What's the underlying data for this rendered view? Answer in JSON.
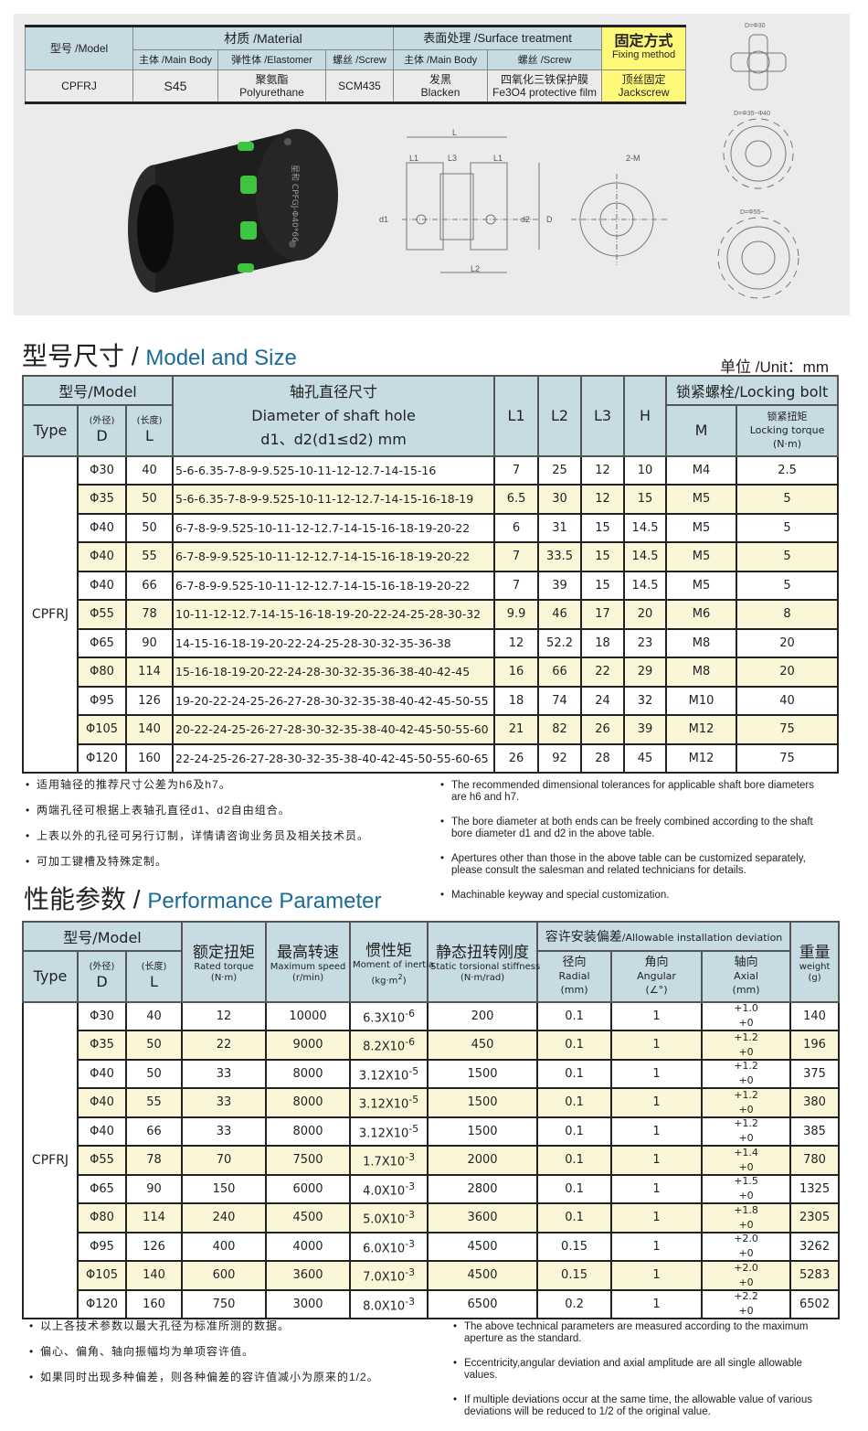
{
  "materials": {
    "model_label": "型号 /Model",
    "material": "材质 /Material",
    "surface": "表面处理 /Surface treatment",
    "fixing": "固定方式",
    "fixing_en": "Fixing method",
    "main_body": "主体 /Main Body",
    "elastomer": "弹性体 /Elastomer",
    "screw": "螺丝 /Screw",
    "surface_main": "主体 /Main Body",
    "surface_screw": "螺丝 /Screw",
    "model": "CPFRJ",
    "body_val": "S45",
    "elast_zh": "聚氨酯",
    "elast_en": "Polyurethane",
    "screw_val": "SCM435",
    "surf_body_zh": "发黑",
    "surf_body_en": "Blacken",
    "surf_screw_zh": "四氧化三铁保护膜",
    "surf_screw_en": "Fe3O4 protective film",
    "fix_zh": "顶丝固定",
    "fix_en": "Jackscrew",
    "accent": "#fff97a"
  },
  "product_image": {
    "engraving": "星和 CPFGJ-Φ40*66"
  },
  "drawing": {
    "L": "L",
    "L1": "L1",
    "L2": "L2",
    "L3": "L3",
    "d1": "d1",
    "d2": "d2",
    "D": "D",
    "M": "2-M",
    "d30": "D=Φ30",
    "d35": "D=Φ35~Φ40",
    "d55": "D=Φ55~"
  },
  "size": {
    "title_zh": "型号尺寸",
    "title_en": "Model and Size",
    "unit": "单位 /Unit：mm",
    "h_model": "型号/Model",
    "h_type": "Type",
    "h_d_zh": "(外径)",
    "h_d": "D",
    "h_l_zh": "(长度)",
    "h_l": "L",
    "h_shaft_zh": "轴孔直径尺寸",
    "h_shaft_en": "Diameter of shaft hole",
    "h_shaft_f": "d1、d2(d1≤d2) mm",
    "h_l1": "L1",
    "h_l2": "L2",
    "h_l3": "L3",
    "h_h": "H",
    "h_lock": "锁紧螺栓/Locking bolt",
    "h_m": "M",
    "h_tq_zh": "锁紧扭矩",
    "h_tq_en": "Locking torque",
    "h_tq_u": "(N·m)",
    "type": "CPFRJ",
    "rows": [
      [
        "Φ30",
        "40",
        "5-6-6.35-7-8-9-9.525-10-11-12-12.7-14-15-16",
        "7",
        "25",
        "12",
        "10",
        "M4",
        "2.5"
      ],
      [
        "Φ35",
        "50",
        "5-6-6.35-7-8-9-9.525-10-11-12-12.7-14-15-16-18-19",
        "6.5",
        "30",
        "12",
        "15",
        "M5",
        "5"
      ],
      [
        "Φ40",
        "50",
        "6-7-8-9-9.525-10-11-12-12.7-14-15-16-18-19-20-22",
        "6",
        "31",
        "15",
        "14.5",
        "M5",
        "5"
      ],
      [
        "Φ40",
        "55",
        "6-7-8-9-9.525-10-11-12-12.7-14-15-16-18-19-20-22",
        "7",
        "33.5",
        "15",
        "14.5",
        "M5",
        "5"
      ],
      [
        "Φ40",
        "66",
        "6-7-8-9-9.525-10-11-12-12.7-14-15-16-18-19-20-22",
        "7",
        "39",
        "15",
        "14.5",
        "M5",
        "5"
      ],
      [
        "Φ55",
        "78",
        "10-11-12-12.7-14-15-16-18-19-20-22-24-25-28-30-32",
        "9.9",
        "46",
        "17",
        "20",
        "M6",
        "8"
      ],
      [
        "Φ65",
        "90",
        "14-15-16-18-19-20-22-24-25-28-30-32-35-36-38",
        "12",
        "52.2",
        "18",
        "23",
        "M8",
        "20"
      ],
      [
        "Φ80",
        "114",
        "15-16-18-19-20-22-24-28-30-32-35-36-38-40-42-45",
        "16",
        "66",
        "22",
        "29",
        "M8",
        "20"
      ],
      [
        "Φ95",
        "126",
        "19-20-22-24-25-26-27-28-30-32-35-38-40-42-45-50-55",
        "18",
        "74",
        "24",
        "32",
        "M10",
        "40"
      ],
      [
        "Φ105",
        "140",
        "20-22-24-25-26-27-28-30-32-35-38-40-42-45-50-55-60",
        "21",
        "82",
        "26",
        "39",
        "M12",
        "75"
      ],
      [
        "Φ120",
        "160",
        "22-24-25-26-27-28-30-32-35-38-40-42-45-50-55-60-65",
        "26",
        "92",
        "28",
        "45",
        "M12",
        "75"
      ]
    ],
    "notes_zh": [
      "适用轴径的推荐尺寸公差为h6及h7。",
      "两端孔径可根据上表轴孔直径d1、d2自由组合。",
      "上表以外的孔径可另行订制，详情请咨询业务员及相关技术员。",
      "可加工键槽及特殊定制。"
    ],
    "notes_en": [
      "The recommended dimensional tolerances for applicable shaft bore diameters are h6 and h7.",
      "The bore diameter at both ends can be freely combined according to the shaft bore diameter d1 and d2 in the above table.",
      "Apertures other than those in the above table can be customized separately, please consult the salesman and related technicians for details.",
      "Machinable keyway and special customization."
    ]
  },
  "perf": {
    "title_zh": "性能参数",
    "title_en": "Performance Parameter",
    "h_model": "型号/Model",
    "h_type": "Type",
    "h_d_zh": "(外径)",
    "h_d": "D",
    "h_l_zh": "(长度)",
    "h_l": "L",
    "h_rt_zh": "额定扭矩",
    "h_rt_en": "Rated torque",
    "h_rt_u": "(N·m)",
    "h_sp_zh": "最高转速",
    "h_sp_en": "Maximum speed",
    "h_sp_u": "(r/min)",
    "h_in_zh": "惯性矩",
    "h_in_en": "Moment of inertia",
    "h_in_u": "(kg·m",
    "h_in_sup": "2",
    "h_in_close": ")",
    "h_st_zh": "静态扭转刚度",
    "h_st_en": "Static torsional stiffness",
    "h_st_u": "(N·m/rad)",
    "h_dev": "容许安装偏差",
    "h_dev_en": "/Allowable installation deviation",
    "h_ra_zh": "径向",
    "h_ra_en": "Radial",
    "h_ra_u": "(mm)",
    "h_an_zh": "角向",
    "h_an_en": "Angular",
    "h_an_u": "(∠°)",
    "h_axl_zh": "轴向",
    "h_axl_en": "Axial",
    "h_axl_u": "(mm)",
    "h_w_zh": "重量",
    "h_w_en": "weight",
    "h_w_u": "(g)",
    "type": "CPFRJ",
    "rows": [
      [
        "Φ30",
        "40",
        "12",
        "10000",
        "6.3X10",
        "-6",
        "200",
        "0.1",
        "1",
        "+1.0",
        "+0",
        "140"
      ],
      [
        "Φ35",
        "50",
        "22",
        "9000",
        "8.2X10",
        "-6",
        "450",
        "0.1",
        "1",
        "+1.2",
        "+0",
        "196"
      ],
      [
        "Φ40",
        "50",
        "33",
        "8000",
        "3.12X10",
        "-5",
        "1500",
        "0.1",
        "1",
        "+1.2",
        "+0",
        "375"
      ],
      [
        "Φ40",
        "55",
        "33",
        "8000",
        "3.12X10",
        "-5",
        "1500",
        "0.1",
        "1",
        "+1.2",
        "+0",
        "380"
      ],
      [
        "Φ40",
        "66",
        "33",
        "8000",
        "3.12X10",
        "-5",
        "1500",
        "0.1",
        "1",
        "+1.2",
        "+0",
        "385"
      ],
      [
        "Φ55",
        "78",
        "70",
        "7500",
        "1.7X10",
        "-3",
        "2000",
        "0.1",
        "1",
        "+1.4",
        "+0",
        "780"
      ],
      [
        "Φ65",
        "90",
        "150",
        "6000",
        "4.0X10",
        "-3",
        "2800",
        "0.1",
        "1",
        "+1.5",
        "+0",
        "1325"
      ],
      [
        "Φ80",
        "114",
        "240",
        "4500",
        "5.0X10",
        "-3",
        "3600",
        "0.1",
        "1",
        "+1.8",
        "+0",
        "2305"
      ],
      [
        "Φ95",
        "126",
        "400",
        "4000",
        "6.0X10",
        "-3",
        "4500",
        "0.15",
        "1",
        "+2.0",
        "+0",
        "3262"
      ],
      [
        "Φ105",
        "140",
        "600",
        "3600",
        "7.0X10",
        "-3",
        "4500",
        "0.15",
        "1",
        "+2.0",
        "+0",
        "5283"
      ],
      [
        "Φ120",
        "160",
        "750",
        "3000",
        "8.0X10",
        "-3",
        "6500",
        "0.2",
        "1",
        "+2.2",
        "+0",
        "6502"
      ]
    ],
    "notes_zh": [
      "以上各技术参数以最大孔径为标准所测的数据。",
      "偏心、偏角、轴向振幅均为单项容许值。",
      "如果同时出现多种偏差，则各种偏差的容许值减小为原来的1/2。"
    ],
    "notes_en": [
      "The above technical parameters are measured according to the maximum aperture as the standard.",
      "Eccentricity,angular deviation and axial amplitude are all single allowable values.",
      "If multiple deviations occur at the same time, the allowable value of various deviations will be reduced to 1/2 of the original value."
    ]
  }
}
